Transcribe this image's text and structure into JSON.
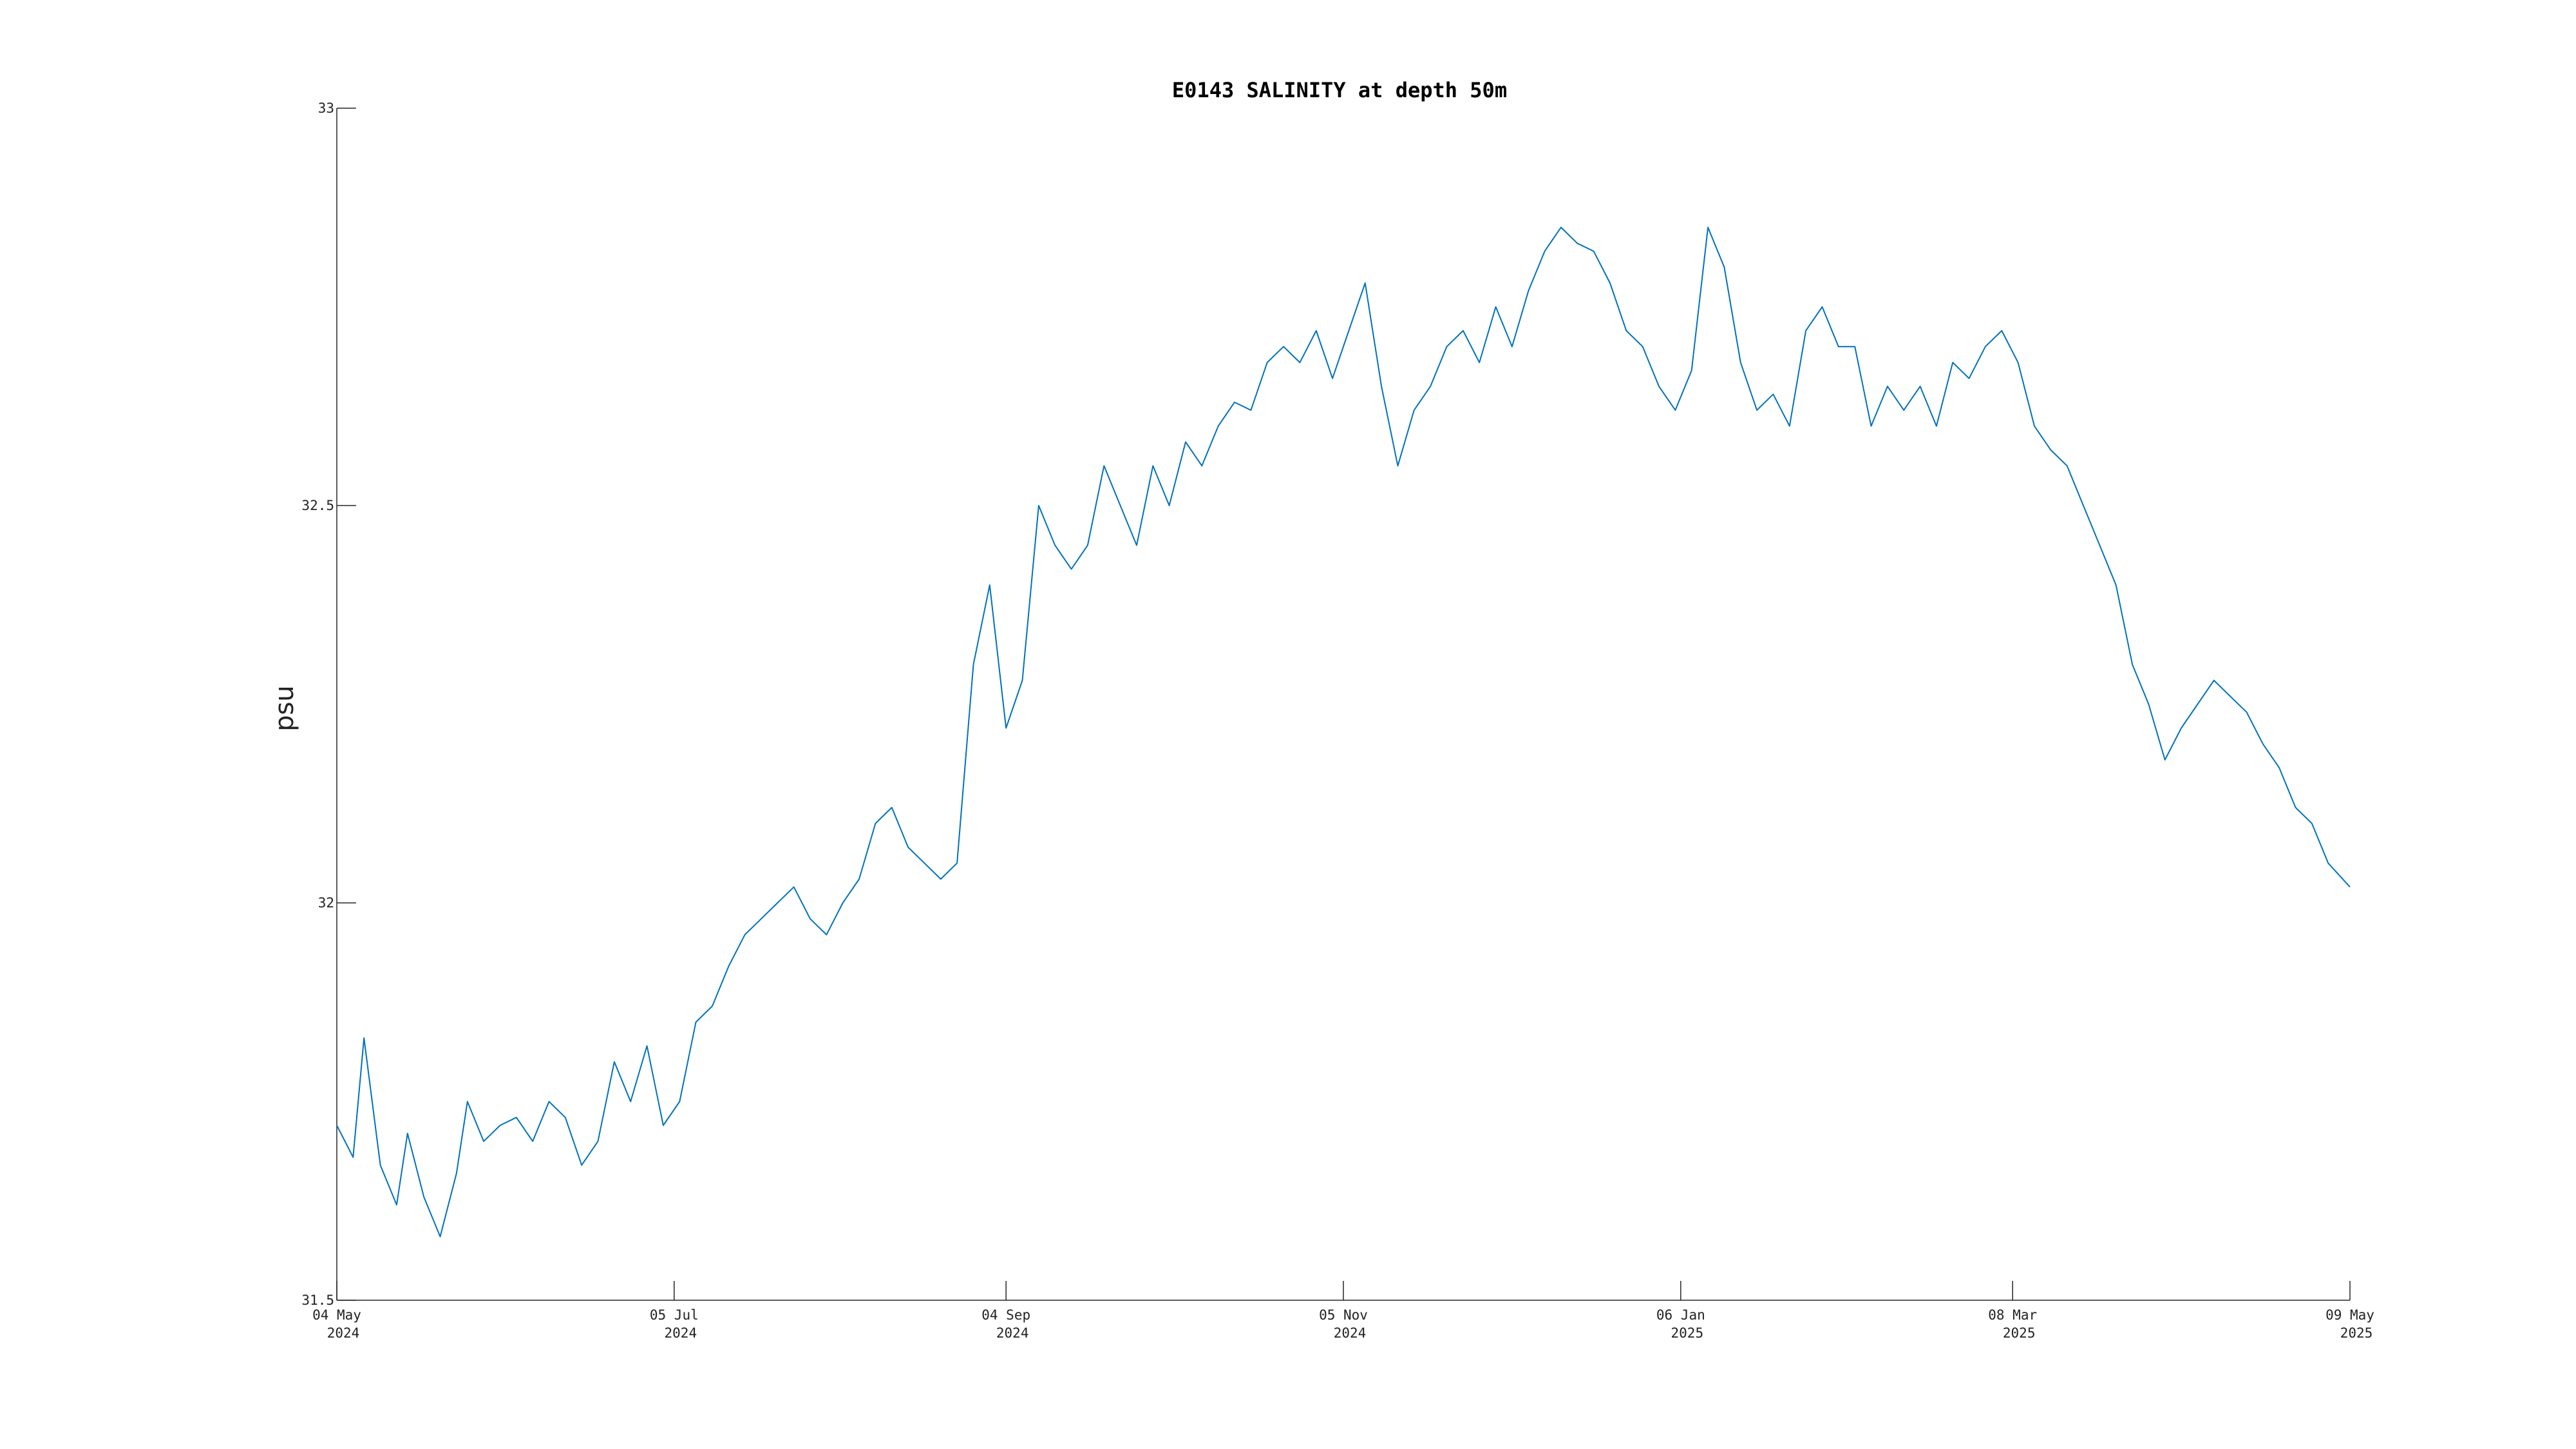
{
  "chart_data": {
    "type": "line",
    "title": "E0143 SALINITY at depth 50m",
    "xlabel": "",
    "ylabel": "psu",
    "ylim": [
      31.5,
      33
    ],
    "xlim": [
      "2024-05-04",
      "2025-05-09"
    ],
    "x_ticks": [
      {
        "date": "2024-05-04",
        "line1": "04 May",
        "line2": "2024"
      },
      {
        "date": "2024-07-05",
        "line1": "05 Jul",
        "line2": "2024"
      },
      {
        "date": "2024-09-04",
        "line1": "04 Sep",
        "line2": "2024"
      },
      {
        "date": "2024-11-05",
        "line1": "05 Nov",
        "line2": "2024"
      },
      {
        "date": "2025-01-06",
        "line1": "06 Jan",
        "line2": "2025"
      },
      {
        "date": "2025-03-08",
        "line1": "08 Mar",
        "line2": "2025"
      },
      {
        "date": "2025-05-09",
        "line1": "09 May",
        "line2": "2025"
      }
    ],
    "y_ticks": [
      31.5,
      32,
      32.5,
      33
    ],
    "y_tick_labels": [
      "31.5",
      "32",
      "32.5",
      "33"
    ],
    "grid": false,
    "color": "#0072BD",
    "series": [
      {
        "x": [
          "2024-05-04",
          "2024-05-07",
          "2024-05-09",
          "2024-05-12",
          "2024-05-15",
          "2024-05-17",
          "2024-05-20",
          "2024-05-23",
          "2024-05-26",
          "2024-05-28",
          "2024-05-31",
          "2024-06-03",
          "2024-06-06",
          "2024-06-09",
          "2024-06-12",
          "2024-06-15",
          "2024-06-18",
          "2024-06-21",
          "2024-06-24",
          "2024-06-27",
          "2024-06-30",
          "2024-07-03",
          "2024-07-06",
          "2024-07-09",
          "2024-07-12",
          "2024-07-15",
          "2024-07-18",
          "2024-07-21",
          "2024-07-24",
          "2024-07-27",
          "2024-07-30",
          "2024-08-02",
          "2024-08-05",
          "2024-08-08",
          "2024-08-11",
          "2024-08-14",
          "2024-08-17",
          "2024-08-20",
          "2024-08-23",
          "2024-08-26",
          "2024-08-29",
          "2024-09-01",
          "2024-09-04",
          "2024-09-07",
          "2024-09-10",
          "2024-09-13",
          "2024-09-16",
          "2024-09-19",
          "2024-09-22",
          "2024-09-25",
          "2024-09-28",
          "2024-10-01",
          "2024-10-04",
          "2024-10-07",
          "2024-10-10",
          "2024-10-13",
          "2024-10-16",
          "2024-10-19",
          "2024-10-22",
          "2024-10-25",
          "2024-10-28",
          "2024-10-31",
          "2024-11-03",
          "2024-11-06",
          "2024-11-09",
          "2024-11-12",
          "2024-11-15",
          "2024-11-18",
          "2024-11-21",
          "2024-11-24",
          "2024-11-27",
          "2024-11-30",
          "2024-12-03",
          "2024-12-06",
          "2024-12-09",
          "2024-12-12",
          "2024-12-15",
          "2024-12-18",
          "2024-12-21",
          "2024-12-24",
          "2024-12-27",
          "2024-12-30",
          "2025-01-02",
          "2025-01-05",
          "2025-01-08",
          "2025-01-11",
          "2025-01-14",
          "2025-01-17",
          "2025-01-20",
          "2025-01-23",
          "2025-01-26",
          "2025-01-29",
          "2025-02-01",
          "2025-02-04",
          "2025-02-07",
          "2025-02-10",
          "2025-02-13",
          "2025-02-16",
          "2025-02-19",
          "2025-02-22",
          "2025-02-25",
          "2025-02-28",
          "2025-03-03",
          "2025-03-06",
          "2025-03-09",
          "2025-03-12",
          "2025-03-15",
          "2025-03-18",
          "2025-03-21",
          "2025-03-24",
          "2025-03-27",
          "2025-03-30",
          "2025-04-02",
          "2025-04-05",
          "2025-04-08",
          "2025-04-11",
          "2025-04-14",
          "2025-04-17",
          "2025-04-20",
          "2025-04-23",
          "2025-04-26",
          "2025-04-29",
          "2025-05-02",
          "2025-05-05",
          "2025-05-09"
        ],
        "y": [
          31.72,
          31.68,
          31.83,
          31.67,
          31.62,
          31.71,
          31.63,
          31.58,
          31.66,
          31.75,
          31.7,
          31.72,
          31.73,
          31.7,
          31.75,
          31.73,
          31.67,
          31.7,
          31.8,
          31.75,
          31.82,
          31.72,
          31.75,
          31.85,
          31.87,
          31.92,
          31.96,
          31.98,
          32.0,
          32.02,
          31.98,
          31.96,
          32.0,
          32.03,
          32.1,
          32.12,
          32.07,
          32.05,
          32.03,
          32.05,
          32.3,
          32.4,
          32.22,
          32.28,
          32.5,
          32.45,
          32.42,
          32.45,
          32.55,
          32.5,
          32.45,
          32.55,
          32.5,
          32.58,
          32.55,
          32.6,
          32.63,
          32.62,
          32.68,
          32.7,
          32.68,
          32.72,
          32.66,
          32.72,
          32.78,
          32.65,
          32.55,
          32.62,
          32.65,
          32.7,
          32.72,
          32.68,
          32.75,
          32.7,
          32.77,
          32.82,
          32.85,
          32.83,
          32.82,
          32.78,
          32.72,
          32.7,
          32.65,
          32.62,
          32.67,
          32.85,
          32.8,
          32.68,
          32.62,
          32.64,
          32.6,
          32.72,
          32.75,
          32.7,
          32.7,
          32.6,
          32.65,
          32.62,
          32.65,
          32.6,
          32.68,
          32.66,
          32.7,
          32.72,
          32.68,
          32.6,
          32.57,
          32.55,
          32.5,
          32.45,
          32.4,
          32.3,
          32.25,
          32.18,
          32.22,
          32.25,
          32.28,
          32.26,
          32.24,
          32.2,
          32.17,
          32.12,
          32.1,
          32.05,
          32.02
        ]
      }
    ]
  }
}
